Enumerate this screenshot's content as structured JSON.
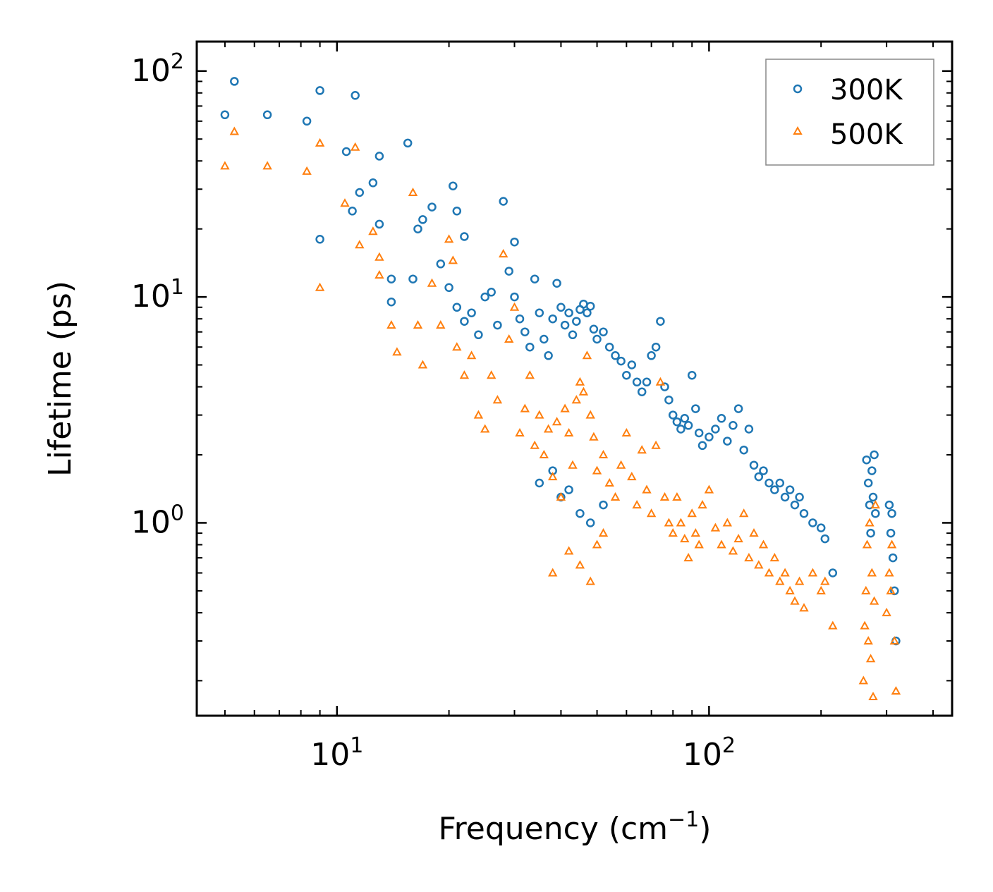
{
  "chart_data": {
    "type": "scatter",
    "xscale": "log",
    "yscale": "log",
    "xlim": [
      4.2,
      450
    ],
    "ylim": [
      0.14,
      135
    ],
    "xlabel_main": "Frequency (cm",
    "xlabel_sup": "−1",
    "xlabel_close": ")",
    "ylabel": "Lifetime (ps)",
    "legend_position": "top-right",
    "x_ticks": [
      {
        "base": "10",
        "exp": "1",
        "value": 10
      },
      {
        "base": "10",
        "exp": "2",
        "value": 100
      }
    ],
    "y_ticks": [
      {
        "base": "10",
        "exp": "0",
        "value": 1
      },
      {
        "base": "10",
        "exp": "1",
        "value": 10
      },
      {
        "base": "10",
        "exp": "2",
        "value": 100
      }
    ],
    "series": [
      {
        "name": "300K",
        "marker": "circle",
        "color": "#1f77b4",
        "points": [
          [
            5.3,
            90
          ],
          [
            5.0,
            64
          ],
          [
            6.5,
            64
          ],
          [
            8.3,
            60
          ],
          [
            9.0,
            82
          ],
          [
            11.2,
            78
          ],
          [
            10.6,
            44
          ],
          [
            13.0,
            42
          ],
          [
            15.5,
            48
          ],
          [
            9.0,
            18
          ],
          [
            11.0,
            24
          ],
          [
            11.5,
            29
          ],
          [
            12.5,
            32
          ],
          [
            13.0,
            21
          ],
          [
            14.0,
            12
          ],
          [
            14.0,
            9.5
          ],
          [
            16.0,
            12
          ],
          [
            16.5,
            20
          ],
          [
            17.0,
            22
          ],
          [
            18.0,
            25
          ],
          [
            19.0,
            14
          ],
          [
            20.5,
            31
          ],
          [
            21.0,
            24
          ],
          [
            22.0,
            18.5
          ],
          [
            20.0,
            11
          ],
          [
            21.0,
            9
          ],
          [
            22.0,
            7.8
          ],
          [
            23.0,
            8.5
          ],
          [
            24.0,
            6.8
          ],
          [
            25.0,
            10
          ],
          [
            26.0,
            10.5
          ],
          [
            27.0,
            7.5
          ],
          [
            28.0,
            26.5
          ],
          [
            29.0,
            13
          ],
          [
            30.0,
            17.5
          ],
          [
            30.0,
            10
          ],
          [
            31.0,
            8
          ],
          [
            32.0,
            7
          ],
          [
            33.0,
            6
          ],
          [
            34.0,
            12
          ],
          [
            35.0,
            8.5
          ],
          [
            36.0,
            6.5
          ],
          [
            37.0,
            5.5
          ],
          [
            38.0,
            8
          ],
          [
            39.0,
            11.5
          ],
          [
            40.0,
            9
          ],
          [
            41.0,
            7.5
          ],
          [
            42.0,
            8.5
          ],
          [
            43.0,
            6.8
          ],
          [
            44.0,
            7.8
          ],
          [
            45.0,
            8.8
          ],
          [
            46.0,
            9.3
          ],
          [
            47.0,
            8.5
          ],
          [
            48.0,
            9.1
          ],
          [
            49.0,
            7.2
          ],
          [
            50.0,
            6.5
          ],
          [
            52.0,
            7
          ],
          [
            54.0,
            6
          ],
          [
            56.0,
            5.5
          ],
          [
            58.0,
            5.2
          ],
          [
            60.0,
            4.5
          ],
          [
            62.0,
            5
          ],
          [
            64.0,
            4.2
          ],
          [
            66.0,
            3.8
          ],
          [
            68.0,
            4.2
          ],
          [
            70.0,
            5.5
          ],
          [
            72.0,
            6
          ],
          [
            74.0,
            7.8
          ],
          [
            76.0,
            4
          ],
          [
            78.0,
            3.5
          ],
          [
            80.0,
            3
          ],
          [
            82.0,
            2.8
          ],
          [
            84.0,
            2.6
          ],
          [
            86.0,
            2.9
          ],
          [
            88.0,
            2.7
          ],
          [
            90.0,
            4.5
          ],
          [
            92.0,
            3.2
          ],
          [
            94.0,
            2.5
          ],
          [
            96.0,
            2.2
          ],
          [
            100.0,
            2.4
          ],
          [
            104.0,
            2.6
          ],
          [
            108.0,
            2.9
          ],
          [
            112.0,
            2.3
          ],
          [
            116.0,
            2.7
          ],
          [
            120.0,
            3.2
          ],
          [
            124.0,
            2.1
          ],
          [
            128.0,
            2.6
          ],
          [
            132.0,
            1.8
          ],
          [
            136.0,
            1.6
          ],
          [
            140.0,
            1.7
          ],
          [
            145.0,
            1.5
          ],
          [
            150.0,
            1.4
          ],
          [
            155.0,
            1.5
          ],
          [
            160.0,
            1.3
          ],
          [
            165.0,
            1.4
          ],
          [
            170.0,
            1.2
          ],
          [
            175.0,
            1.3
          ],
          [
            180.0,
            1.1
          ],
          [
            190.0,
            1.0
          ],
          [
            200.0,
            0.95
          ],
          [
            205.0,
            0.85
          ],
          [
            215.0,
            0.6
          ],
          [
            40.0,
            1.3
          ],
          [
            45.0,
            1.1
          ],
          [
            48.0,
            1.0
          ],
          [
            52.0,
            1.2
          ],
          [
            35.0,
            1.5
          ],
          [
            38.0,
            1.7
          ],
          [
            42.0,
            1.4
          ],
          [
            265.0,
            1.9
          ],
          [
            268.0,
            1.5
          ],
          [
            270.0,
            1.2
          ],
          [
            272.0,
            0.9
          ],
          [
            274.0,
            1.7
          ],
          [
            276.0,
            1.3
          ],
          [
            278.0,
            2.0
          ],
          [
            280.0,
            1.1
          ],
          [
            305.0,
            1.2
          ],
          [
            308.0,
            0.9
          ],
          [
            310.0,
            1.1
          ],
          [
            312.0,
            0.7
          ],
          [
            315.0,
            0.5
          ],
          [
            318.0,
            0.3
          ]
        ]
      },
      {
        "name": "500K",
        "marker": "triangle",
        "color": "#ff7f0e",
        "points": [
          [
            5.3,
            54
          ],
          [
            5.0,
            38
          ],
          [
            6.5,
            38
          ],
          [
            8.3,
            36
          ],
          [
            9.0,
            48
          ],
          [
            11.2,
            46
          ],
          [
            9.0,
            11
          ],
          [
            10.5,
            26
          ],
          [
            11.5,
            17
          ],
          [
            12.5,
            19.5
          ],
          [
            13.0,
            15
          ],
          [
            13.0,
            12.5
          ],
          [
            14.0,
            7.5
          ],
          [
            14.5,
            5.7
          ],
          [
            16.0,
            29
          ],
          [
            16.5,
            7.5
          ],
          [
            17.0,
            5
          ],
          [
            18.0,
            11.5
          ],
          [
            19.0,
            7.5
          ],
          [
            20.0,
            18
          ],
          [
            20.5,
            14.5
          ],
          [
            21.0,
            6
          ],
          [
            22.0,
            4.5
          ],
          [
            23.0,
            5.5
          ],
          [
            24.0,
            3
          ],
          [
            25.0,
            2.6
          ],
          [
            26.0,
            4.5
          ],
          [
            27.0,
            3.5
          ],
          [
            28.0,
            15.5
          ],
          [
            29.0,
            6.5
          ],
          [
            30.0,
            9
          ],
          [
            31.0,
            2.5
          ],
          [
            32.0,
            3.2
          ],
          [
            33.0,
            4.5
          ],
          [
            34.0,
            2.2
          ],
          [
            35.0,
            3
          ],
          [
            36.0,
            2
          ],
          [
            37.0,
            2.6
          ],
          [
            38.0,
            1.6
          ],
          [
            39.0,
            2.8
          ],
          [
            40.0,
            1.3
          ],
          [
            41.0,
            3.2
          ],
          [
            42.0,
            2.5
          ],
          [
            43.0,
            1.8
          ],
          [
            44.0,
            3.5
          ],
          [
            45.0,
            4.2
          ],
          [
            46.0,
            3.8
          ],
          [
            47.0,
            5.5
          ],
          [
            48.0,
            3
          ],
          [
            49.0,
            2.4
          ],
          [
            50.0,
            1.7
          ],
          [
            52.0,
            2
          ],
          [
            54.0,
            1.5
          ],
          [
            56.0,
            1.3
          ],
          [
            58.0,
            1.8
          ],
          [
            60.0,
            2.5
          ],
          [
            62.0,
            1.6
          ],
          [
            64.0,
            1.2
          ],
          [
            66.0,
            2.1
          ],
          [
            68.0,
            1.4
          ],
          [
            70.0,
            1.1
          ],
          [
            72.0,
            2.2
          ],
          [
            74.0,
            4.2
          ],
          [
            76.0,
            1.3
          ],
          [
            78.0,
            1.0
          ],
          [
            80.0,
            0.9
          ],
          [
            82.0,
            1.3
          ],
          [
            84.0,
            1.0
          ],
          [
            86.0,
            0.85
          ],
          [
            88.0,
            0.7
          ],
          [
            90.0,
            1.1
          ],
          [
            92.0,
            0.9
          ],
          [
            94.0,
            0.8
          ],
          [
            96.0,
            1.2
          ],
          [
            100.0,
            1.4
          ],
          [
            104.0,
            0.95
          ],
          [
            108.0,
            0.8
          ],
          [
            112.0,
            1.0
          ],
          [
            116.0,
            0.75
          ],
          [
            120.0,
            0.85
          ],
          [
            124.0,
            1.1
          ],
          [
            128.0,
            0.7
          ],
          [
            132.0,
            0.9
          ],
          [
            136.0,
            0.65
          ],
          [
            140.0,
            0.8
          ],
          [
            145.0,
            0.6
          ],
          [
            150.0,
            0.7
          ],
          [
            155.0,
            0.55
          ],
          [
            160.0,
            0.6
          ],
          [
            165.0,
            0.5
          ],
          [
            170.0,
            0.45
          ],
          [
            175.0,
            0.55
          ],
          [
            180.0,
            0.42
          ],
          [
            190.0,
            0.6
          ],
          [
            200.0,
            0.5
          ],
          [
            205.0,
            0.55
          ],
          [
            215.0,
            0.35
          ],
          [
            38.0,
            0.6
          ],
          [
            42.0,
            0.75
          ],
          [
            45.0,
            0.65
          ],
          [
            48.0,
            0.55
          ],
          [
            50.0,
            0.8
          ],
          [
            52.0,
            0.9
          ],
          [
            260.0,
            0.2
          ],
          [
            262.0,
            0.35
          ],
          [
            264.0,
            0.5
          ],
          [
            266.0,
            0.8
          ],
          [
            268.0,
            0.3
          ],
          [
            270.0,
            1.0
          ],
          [
            272.0,
            0.25
          ],
          [
            274.0,
            0.6
          ],
          [
            276.0,
            0.17
          ],
          [
            278.0,
            0.45
          ],
          [
            280.0,
            1.2
          ],
          [
            300.0,
            0.4
          ],
          [
            305.0,
            0.6
          ],
          [
            308.0,
            0.5
          ],
          [
            310.0,
            0.8
          ],
          [
            315.0,
            0.3
          ],
          [
            318.0,
            0.18
          ]
        ]
      }
    ]
  }
}
